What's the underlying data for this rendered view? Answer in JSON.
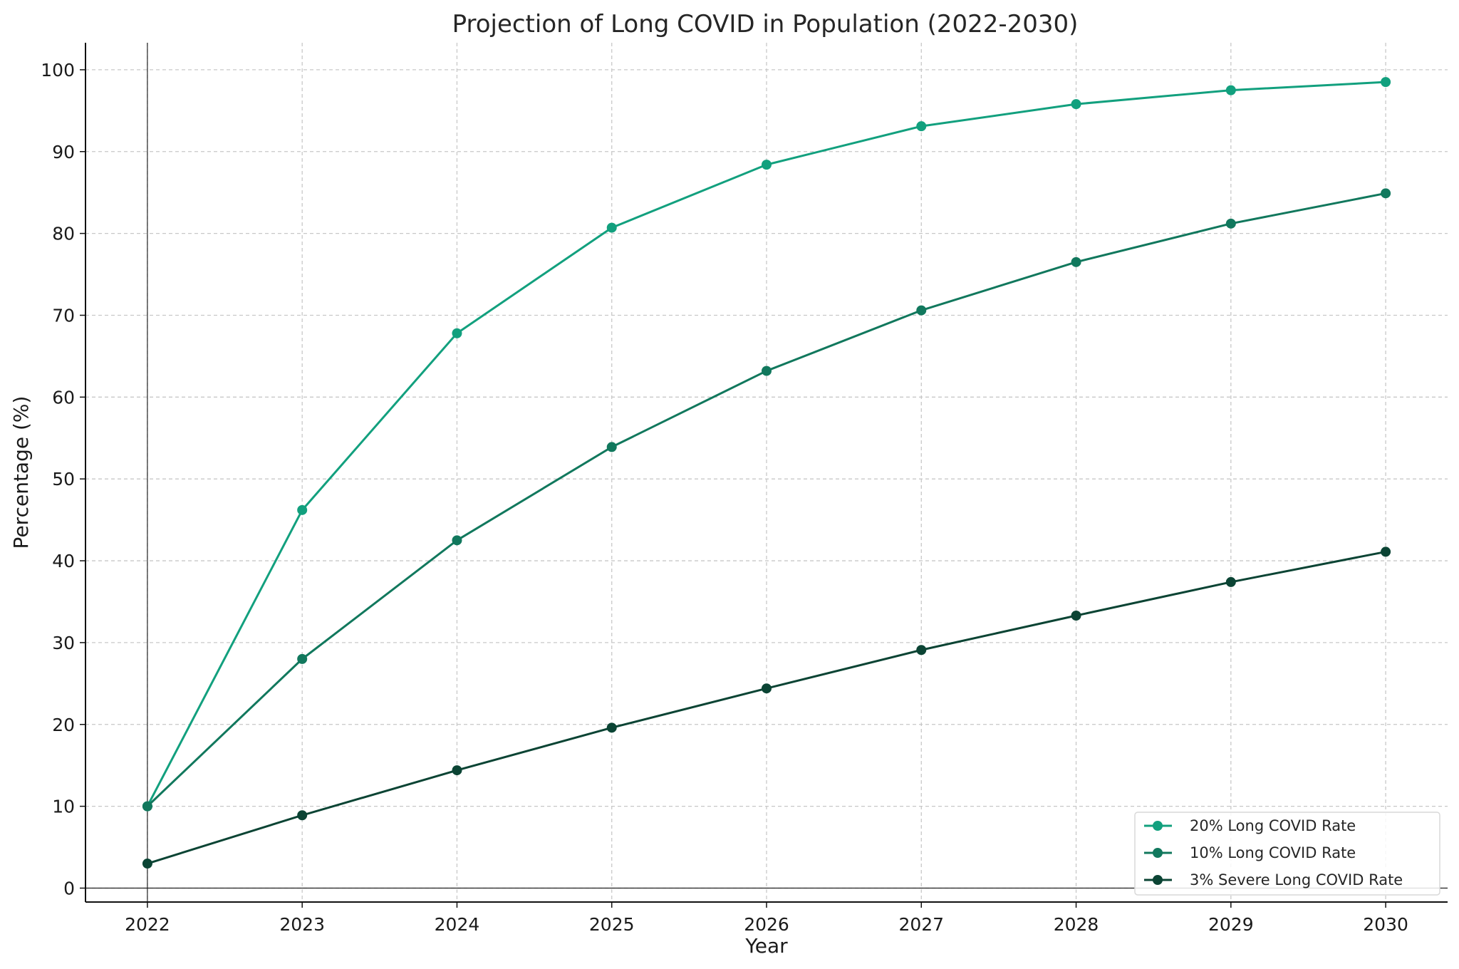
{
  "chart_data": {
    "type": "line",
    "title": "Projection of Long COVID in Population (2022-2030)",
    "xlabel": "Year",
    "ylabel": "Percentage (%)",
    "x": [
      2022,
      2023,
      2024,
      2025,
      2026,
      2027,
      2028,
      2029,
      2030
    ],
    "x_tick_labels": [
      "2022",
      "2023",
      "2024",
      "2025",
      "2026",
      "2027",
      "2028",
      "2029",
      "2030"
    ],
    "y_ticks": [
      0,
      10,
      20,
      30,
      40,
      50,
      60,
      70,
      80,
      90,
      100
    ],
    "y_tick_labels": [
      "0",
      "10",
      "20",
      "30",
      "40",
      "50",
      "60",
      "70",
      "80",
      "90",
      "100"
    ],
    "xlim": [
      2021.6,
      2030.4
    ],
    "ylim": [
      -1.7,
      103.3
    ],
    "grid": true,
    "legend_position": "bottom-right",
    "series": [
      {
        "name": "20% Long COVID Rate",
        "color": "#12a07e",
        "values": [
          10,
          46.2,
          67.8,
          80.7,
          88.4,
          93.1,
          95.8,
          97.5,
          98.5
        ]
      },
      {
        "name": "10% Long COVID Rate",
        "color": "#11785d",
        "values": [
          10,
          28,
          42.5,
          53.9,
          63.2,
          70.6,
          76.5,
          81.2,
          84.9
        ]
      },
      {
        "name": "3% Severe Long COVID Rate",
        "color": "#0b4434",
        "values": [
          3,
          8.9,
          14.4,
          19.6,
          24.4,
          29.1,
          33.3,
          37.4,
          41.1
        ]
      }
    ]
  }
}
